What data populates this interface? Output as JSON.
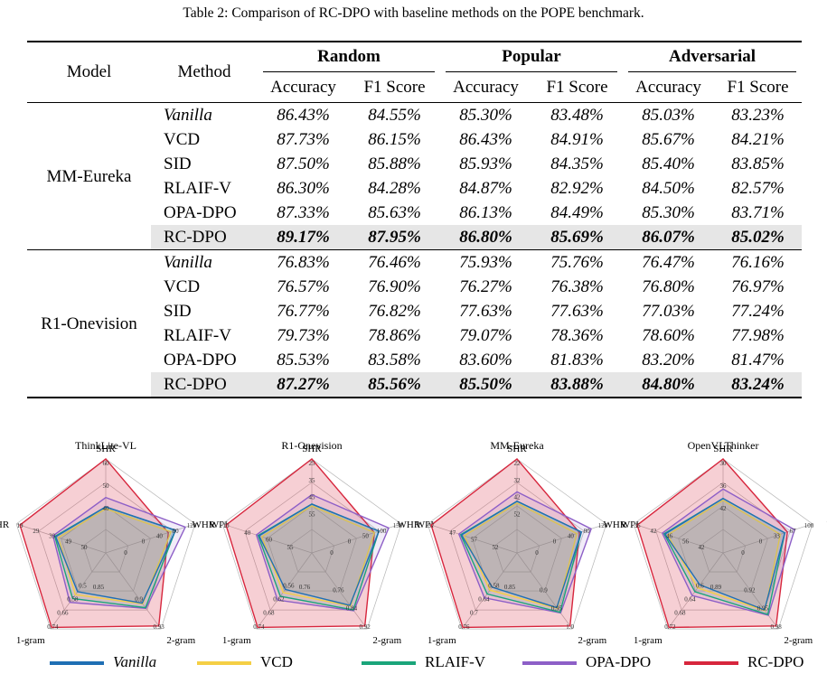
{
  "caption": "Table 2: Comparison of RC-DPO with baseline methods on the POPE benchmark.",
  "table": {
    "col_model": "Model",
    "col_method": "Method",
    "groups": [
      "Random",
      "Popular",
      "Adversarial"
    ],
    "subcols": [
      "Accuracy",
      "F1 Score",
      "Accuracy",
      "F1 Score",
      "Accuracy",
      "F1 Score"
    ],
    "blocks": [
      {
        "model": "MM-Eureka",
        "rows": [
          {
            "method": "Vanilla",
            "values": [
              "86.43%",
              "84.55%",
              "85.30%",
              "83.48%",
              "85.03%",
              "83.23%"
            ]
          },
          {
            "method": "VCD",
            "values": [
              "87.73%",
              "86.15%",
              "86.43%",
              "84.91%",
              "85.67%",
              "84.21%"
            ]
          },
          {
            "method": "SID",
            "values": [
              "87.50%",
              "85.88%",
              "85.93%",
              "84.35%",
              "85.40%",
              "83.85%"
            ]
          },
          {
            "method": "RLAIF-V",
            "values": [
              "86.30%",
              "84.28%",
              "84.87%",
              "82.92%",
              "84.50%",
              "82.57%"
            ]
          },
          {
            "method": "OPA-DPO",
            "values": [
              "87.33%",
              "85.63%",
              "86.13%",
              "84.49%",
              "85.30%",
              "83.71%"
            ]
          },
          {
            "method": "RC-DPO",
            "values": [
              "89.17%",
              "87.95%",
              "86.80%",
              "85.69%",
              "86.07%",
              "85.02%"
            ]
          }
        ]
      },
      {
        "model": "R1-Onevision",
        "rows": [
          {
            "method": "Vanilla",
            "values": [
              "76.83%",
              "76.46%",
              "75.93%",
              "75.76%",
              "76.47%",
              "76.16%"
            ]
          },
          {
            "method": "VCD",
            "values": [
              "76.57%",
              "76.90%",
              "76.27%",
              "76.38%",
              "76.80%",
              "76.97%"
            ]
          },
          {
            "method": "SID",
            "values": [
              "76.77%",
              "76.82%",
              "77.63%",
              "77.63%",
              "77.03%",
              "77.24%"
            ]
          },
          {
            "method": "RLAIF-V",
            "values": [
              "79.73%",
              "78.86%",
              "79.07%",
              "78.36%",
              "78.60%",
              "77.98%"
            ]
          },
          {
            "method": "OPA-DPO",
            "values": [
              "85.53%",
              "83.58%",
              "83.60%",
              "81.83%",
              "83.20%",
              "81.47%"
            ]
          },
          {
            "method": "RC-DPO",
            "values": [
              "87.27%",
              "85.56%",
              "85.50%",
              "83.88%",
              "84.80%",
              "83.24%"
            ]
          }
        ]
      }
    ]
  },
  "chart_data": [
    {
      "type": "radar",
      "title": "ThinkLite-VL",
      "axes": [
        "SHR",
        "WPI",
        "2-gram",
        "1-gram",
        "WHR"
      ],
      "tick_labels": [
        [
          "60",
          "50",
          "40"
        ],
        [
          "120",
          "80",
          "40",
          "0"
        ],
        [
          "0.93",
          "0.9"
        ],
        [
          "0.74",
          "0.66",
          "0.58",
          "0.5"
        ],
        [
          "19",
          "29",
          "39",
          "49"
        ]
      ],
      "center_labels": [
        "50",
        "0",
        "0.85"
      ]
    },
    {
      "type": "radar",
      "title": "R1-Onevision",
      "axes": [
        "SHR",
        "WPI",
        "2-gram",
        "1-gram",
        "WHR"
      ],
      "tick_labels": [
        [
          "25",
          "35",
          "45",
          "55"
        ],
        [
          "150",
          "100",
          "50",
          "0"
        ],
        [
          "0.92",
          "0.84",
          "0.76"
        ],
        [
          "0.74",
          "0.68",
          "0.62",
          "0.56"
        ],
        [
          "10",
          "40",
          "60"
        ]
      ],
      "center_labels": [
        "55",
        "0",
        "0.76"
      ]
    },
    {
      "type": "radar",
      "title": "MM-Eureka",
      "axes": [
        "SHR",
        "WPI",
        "2-gram",
        "1-gram",
        "WHR"
      ],
      "tick_labels": [
        [
          "22",
          "32",
          "42",
          "52"
        ],
        [
          "120",
          "80",
          "40",
          "0"
        ],
        [
          "1.0",
          "0.95",
          "0.9"
        ],
        [
          "0.76",
          "0.7",
          "0.64",
          "0.58"
        ],
        [
          "37",
          "47",
          "57"
        ]
      ],
      "center_labels": [
        "52",
        "0",
        "0.85"
      ]
    },
    {
      "type": "radar",
      "title": "OpenVLThinker",
      "axes": [
        "SHR",
        "WPI",
        "2-gram",
        "1-gram",
        "WHR"
      ],
      "tick_labels": [
        [
          "30",
          "36",
          "42"
        ],
        [
          "100",
          "67",
          "33",
          "0"
        ],
        [
          "0.98",
          "0.95",
          "0.92"
        ],
        [
          "0.72",
          "0.68",
          "0.64",
          "0.6"
        ],
        [
          "36",
          "42",
          "46",
          "56"
        ]
      ],
      "center_labels": [
        "42",
        "0",
        "0.89"
      ]
    }
  ],
  "legend": [
    {
      "name": "Vanilla",
      "color": "#1f6fb4"
    },
    {
      "name": "VCD",
      "color": "#f5cf45"
    },
    {
      "name": "RLAIF-V",
      "color": "#1aa57a"
    },
    {
      "name": "OPA-DPO",
      "color": "#8d5fc7"
    },
    {
      "name": "RC-DPO",
      "color": "#d7263d"
    }
  ],
  "radar_profiles": {
    "Vanilla": [
      0.45,
      0.82,
      0.62,
      0.55,
      0.52
    ],
    "VCD": [
      0.44,
      0.76,
      0.64,
      0.58,
      0.5
    ],
    "RLAIF-V": [
      0.47,
      0.8,
      0.7,
      0.62,
      0.55
    ],
    "OPA-DPO": [
      0.58,
      0.9,
      0.72,
      0.66,
      0.58
    ],
    "RC-DPO": [
      1.0,
      0.7,
      0.96,
      0.98,
      0.96
    ]
  }
}
